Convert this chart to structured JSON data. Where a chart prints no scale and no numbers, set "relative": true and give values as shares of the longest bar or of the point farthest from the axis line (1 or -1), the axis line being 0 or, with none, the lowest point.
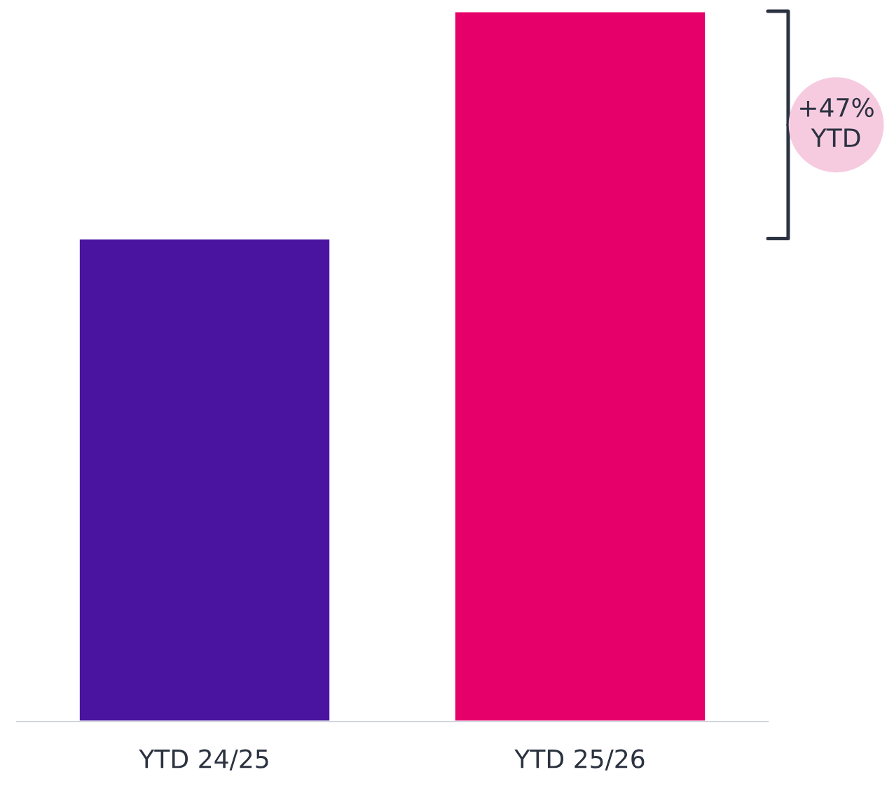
{
  "chart_data": {
    "type": "bar",
    "relative": true,
    "categories": [
      "YTD 24/25",
      "YTD 25/26"
    ],
    "values": [
      0.68,
      1
    ],
    "colors": [
      "#4a14a0",
      "#e5006a"
    ],
    "annotations": [
      "+47%\nYTD"
    ],
    "grid": false,
    "legend": false
  }
}
